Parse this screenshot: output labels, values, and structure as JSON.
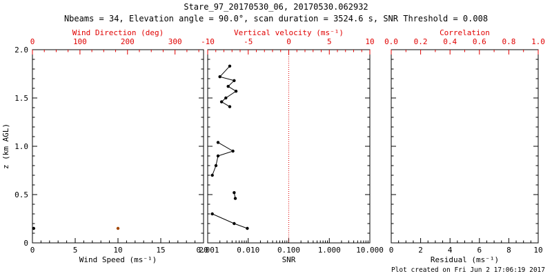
{
  "header": {
    "title": "Stare_97_20170530_06, 20170530.062932",
    "subtitle": "Nbeams = 34, Elevation angle = 90.0°, scan duration = 3524.6 s, SNR Threshold = 0.008"
  },
  "footer": {
    "created": "Plot created on Fri Jun  2 17:06:19 2017"
  },
  "colors": {
    "axis": "#000000",
    "top_axis": "#e00000",
    "wind_direction_point": "#a34700",
    "background": "#ffffff"
  },
  "chart_data": [
    {
      "type": "scatter",
      "name": "wind-panel",
      "xlabel": "Wind Speed (ms⁻¹)",
      "x_range": [
        0,
        20
      ],
      "x_ticks": [
        0,
        5,
        10,
        15,
        20
      ],
      "x_tick_labels": [
        "0",
        "5",
        "10",
        "15",
        "20"
      ],
      "x_minor_div": 5,
      "top_label": "Wind Direction (deg)",
      "top_range": [
        0,
        360
      ],
      "top_ticks": [
        0,
        100,
        200,
        300
      ],
      "top_tick_labels": [
        "0",
        "100",
        "200",
        "300"
      ],
      "top_minor_div": 4,
      "ylabel": "z (km AGL)",
      "y_range": [
        0,
        2.0
      ],
      "y_ticks": [
        0,
        0.5,
        1.0,
        1.5,
        2.0
      ],
      "y_tick_labels": [
        "0",
        "0.5",
        "1.0",
        "1.5",
        "2.0"
      ],
      "y_minor_div": 5,
      "show_y_labels": true,
      "grid": false,
      "series": [
        {
          "name": "wind-speed",
          "type": "scatter",
          "axis": "bottom",
          "color": "#000000",
          "points": [
            [
              0.15,
              0.15
            ]
          ]
        },
        {
          "name": "wind-direction",
          "type": "scatter",
          "axis": "top",
          "color": "#a34700",
          "points": [
            [
              180,
              0.15
            ]
          ]
        }
      ]
    },
    {
      "type": "line",
      "name": "snr-panel",
      "xlabel": "SNR",
      "x_scale": "log",
      "x_range": [
        0.001,
        10.0
      ],
      "x_ticks": [
        0.001,
        0.01,
        0.1,
        1.0,
        10.0
      ],
      "x_tick_labels": [
        "0.001",
        "0.010",
        "0.100",
        "1.000",
        "10.000"
      ],
      "top_label": "Vertical velocity (ms⁻¹)",
      "top_range": [
        -10,
        10
      ],
      "top_ticks": [
        -10,
        -5,
        0,
        5,
        10
      ],
      "top_tick_labels": [
        "-10",
        "-5",
        "0",
        "5",
        "10"
      ],
      "top_minor_div": 5,
      "y_range": [
        0,
        2.0
      ],
      "y_ticks": [
        0,
        0.5,
        1.0,
        1.5,
        2.0
      ],
      "y_minor_div": 5,
      "show_y_labels": false,
      "grid": false,
      "ref_lines": [
        {
          "name": "zero-velocity-line",
          "axis": "top",
          "value": 0,
          "color": "#e00000",
          "style": "dotted"
        }
      ],
      "series": [
        {
          "name": "snr-profile",
          "type": "line-scatter",
          "axis": "bottom",
          "color": "#000000",
          "segments": [
            [
              [
                0.0035,
                1.83
              ],
              [
                0.002,
                1.72
              ],
              [
                0.0045,
                1.68
              ],
              [
                0.0032,
                1.62
              ],
              [
                0.005,
                1.57
              ],
              [
                0.0028,
                1.5
              ],
              [
                0.0022,
                1.46
              ],
              [
                0.0035,
                1.41
              ]
            ],
            [
              [
                0.0018,
                1.04
              ],
              [
                0.0042,
                0.95
              ],
              [
                0.0018,
                0.9
              ],
              [
                0.0016,
                0.8
              ],
              [
                0.0013,
                0.7
              ]
            ],
            [
              [
                0.0045,
                0.52
              ],
              [
                0.0048,
                0.46
              ]
            ],
            [
              [
                0.0013,
                0.3
              ],
              [
                0.0045,
                0.2
              ],
              [
                0.0095,
                0.15
              ]
            ]
          ]
        }
      ]
    },
    {
      "type": "scatter",
      "name": "residual-panel",
      "xlabel": "Residual (ms⁻¹)",
      "x_range": [
        0,
        10
      ],
      "x_ticks": [
        0,
        2,
        4,
        6,
        8,
        10
      ],
      "x_tick_labels": [
        "0",
        "2",
        "4",
        "6",
        "8",
        "10"
      ],
      "x_minor_div": 4,
      "top_label": "Correlation",
      "top_range": [
        0.0,
        1.0
      ],
      "top_ticks": [
        0.0,
        0.2,
        0.4,
        0.6,
        0.8,
        1.0
      ],
      "top_tick_labels": [
        "0.0",
        "0.2",
        "0.4",
        "0.6",
        "0.8",
        "1.0"
      ],
      "top_minor_div": 2,
      "y_range": [
        0,
        2.0
      ],
      "y_ticks": [
        0,
        0.5,
        1.0,
        1.5,
        2.0
      ],
      "y_minor_div": 5,
      "show_y_labels": false,
      "grid": false,
      "series": []
    }
  ]
}
